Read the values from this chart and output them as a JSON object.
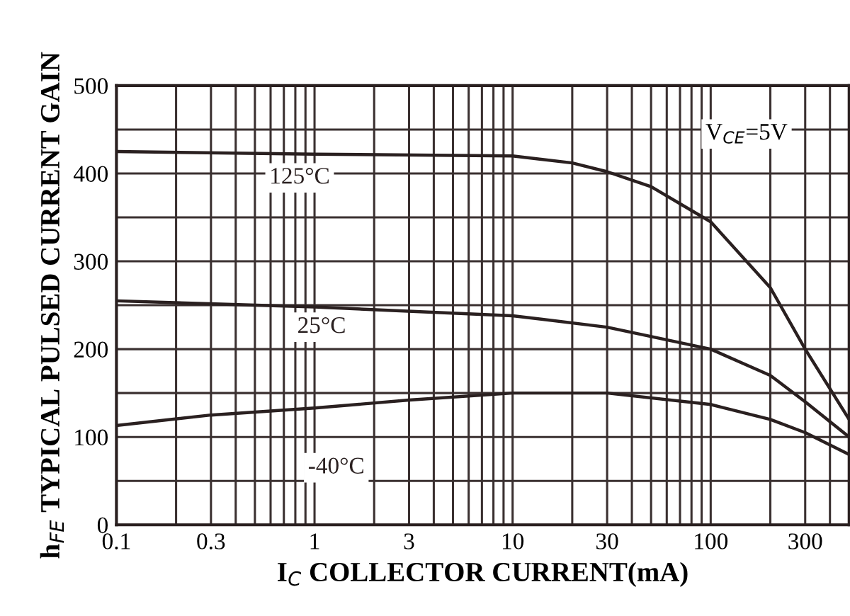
{
  "chart_data": {
    "type": "line",
    "xlabel": "I$_{C}$ COLLECTOR CURRENT(mA)",
    "ylabel": "h$_{FE}$ TYPICAL PULSED CURRENT GAIN",
    "log": "x",
    "grid": true,
    "legend": false,
    "marker": "none",
    "line_style": "solid",
    "xlim": [
      0.1,
      500
    ],
    "ylim": [
      0,
      500
    ],
    "xticks": [
      0.1,
      {
        "value": 0.2,
        "label": null
      },
      {
        "value": 0.3,
        "label": "0.3"
      },
      {
        "value": 0.4,
        "label": null
      },
      {
        "value": 0.5,
        "label": null
      },
      {
        "value": 0.6,
        "label": null
      },
      {
        "value": 0.7,
        "label": null
      },
      {
        "value": 0.8,
        "label": null
      },
      {
        "value": 0.9,
        "label": null
      },
      1,
      {
        "value": 2,
        "label": null
      },
      3,
      {
        "value": 4,
        "label": null
      },
      {
        "value": 5,
        "label": null
      },
      {
        "value": 6,
        "label": null
      },
      {
        "value": 7,
        "label": null
      },
      {
        "value": 8,
        "label": null
      },
      {
        "value": 9,
        "label": null
      },
      10,
      {
        "value": 20,
        "label": null
      },
      30,
      {
        "value": 40,
        "label": null
      },
      {
        "value": 50,
        "label": null
      },
      {
        "value": 60,
        "label": null
      },
      {
        "value": 70,
        "label": null
      },
      {
        "value": 80,
        "label": null
      },
      {
        "value": 90,
        "label": null
      },
      100,
      {
        "value": 200,
        "label": null
      },
      300,
      {
        "value": 400,
        "label": null
      },
      {
        "value": 500,
        "label": null
      }
    ],
    "yticks": [
      0,
      {
        "value": 50,
        "label": null
      },
      100,
      {
        "value": 150,
        "label": null
      },
      200,
      {
        "value": 250,
        "label": null
      },
      300,
      {
        "value": 350,
        "label": null
      },
      400,
      {
        "value": 450,
        "label": null
      },
      500
    ],
    "series": [
      {
        "name": "125°C",
        "color": "#2a2020",
        "x": [
          0.1,
          1,
          10,
          20,
          30,
          50,
          100,
          200,
          300,
          500
        ],
        "values": [
          425,
          422,
          420,
          412,
          402,
          385,
          345,
          270,
          200,
          120
        ]
      },
      {
        "name": "25°C",
        "color": "#2a2020",
        "x": [
          0.1,
          1,
          10,
          30,
          100,
          200,
          300,
          500
        ],
        "values": [
          255,
          248,
          238,
          225,
          200,
          170,
          140,
          100
        ]
      },
      {
        "name": "-40°C",
        "color": "#2a2020",
        "x": [
          0.1,
          0.3,
          1,
          3,
          10,
          30,
          100,
          200,
          300,
          500
        ],
        "values": [
          113,
          125,
          133,
          142,
          150,
          150,
          137,
          120,
          105,
          80
        ]
      }
    ],
    "annotations": [
      "V$_{CE}$=5V"
    ]
  }
}
